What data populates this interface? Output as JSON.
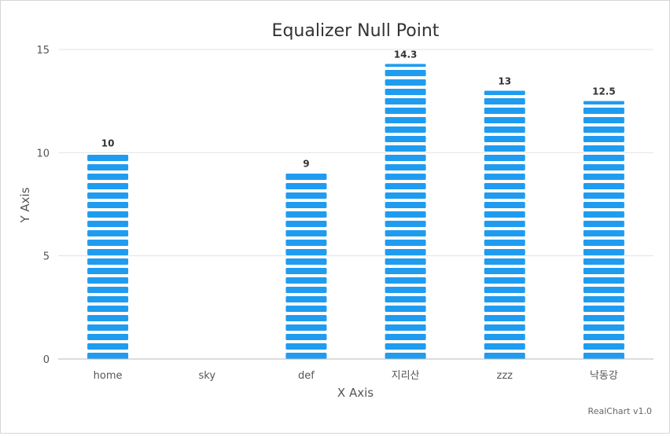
{
  "chart_data": {
    "type": "bar",
    "title": "Equalizer Null Point",
    "xlabel": "X Axis",
    "ylabel": "Y Axis",
    "categories": [
      "home",
      "sky",
      "def",
      "지리산",
      "zzz",
      "낙동강"
    ],
    "values": [
      10,
      null,
      9,
      14.3,
      13,
      12.5
    ],
    "data_labels": [
      "10",
      "",
      "9",
      "14.3",
      "13",
      "12.5"
    ],
    "ylim": [
      0,
      15
    ],
    "yticks": [
      0,
      5,
      10,
      15
    ],
    "ytick_labels": [
      "0",
      "5",
      "10",
      "15"
    ],
    "grid": true,
    "legend": "none",
    "bar_style": "equalizer",
    "bar_color": "#1f9cf0"
  },
  "credit": "RealChart v1.0"
}
